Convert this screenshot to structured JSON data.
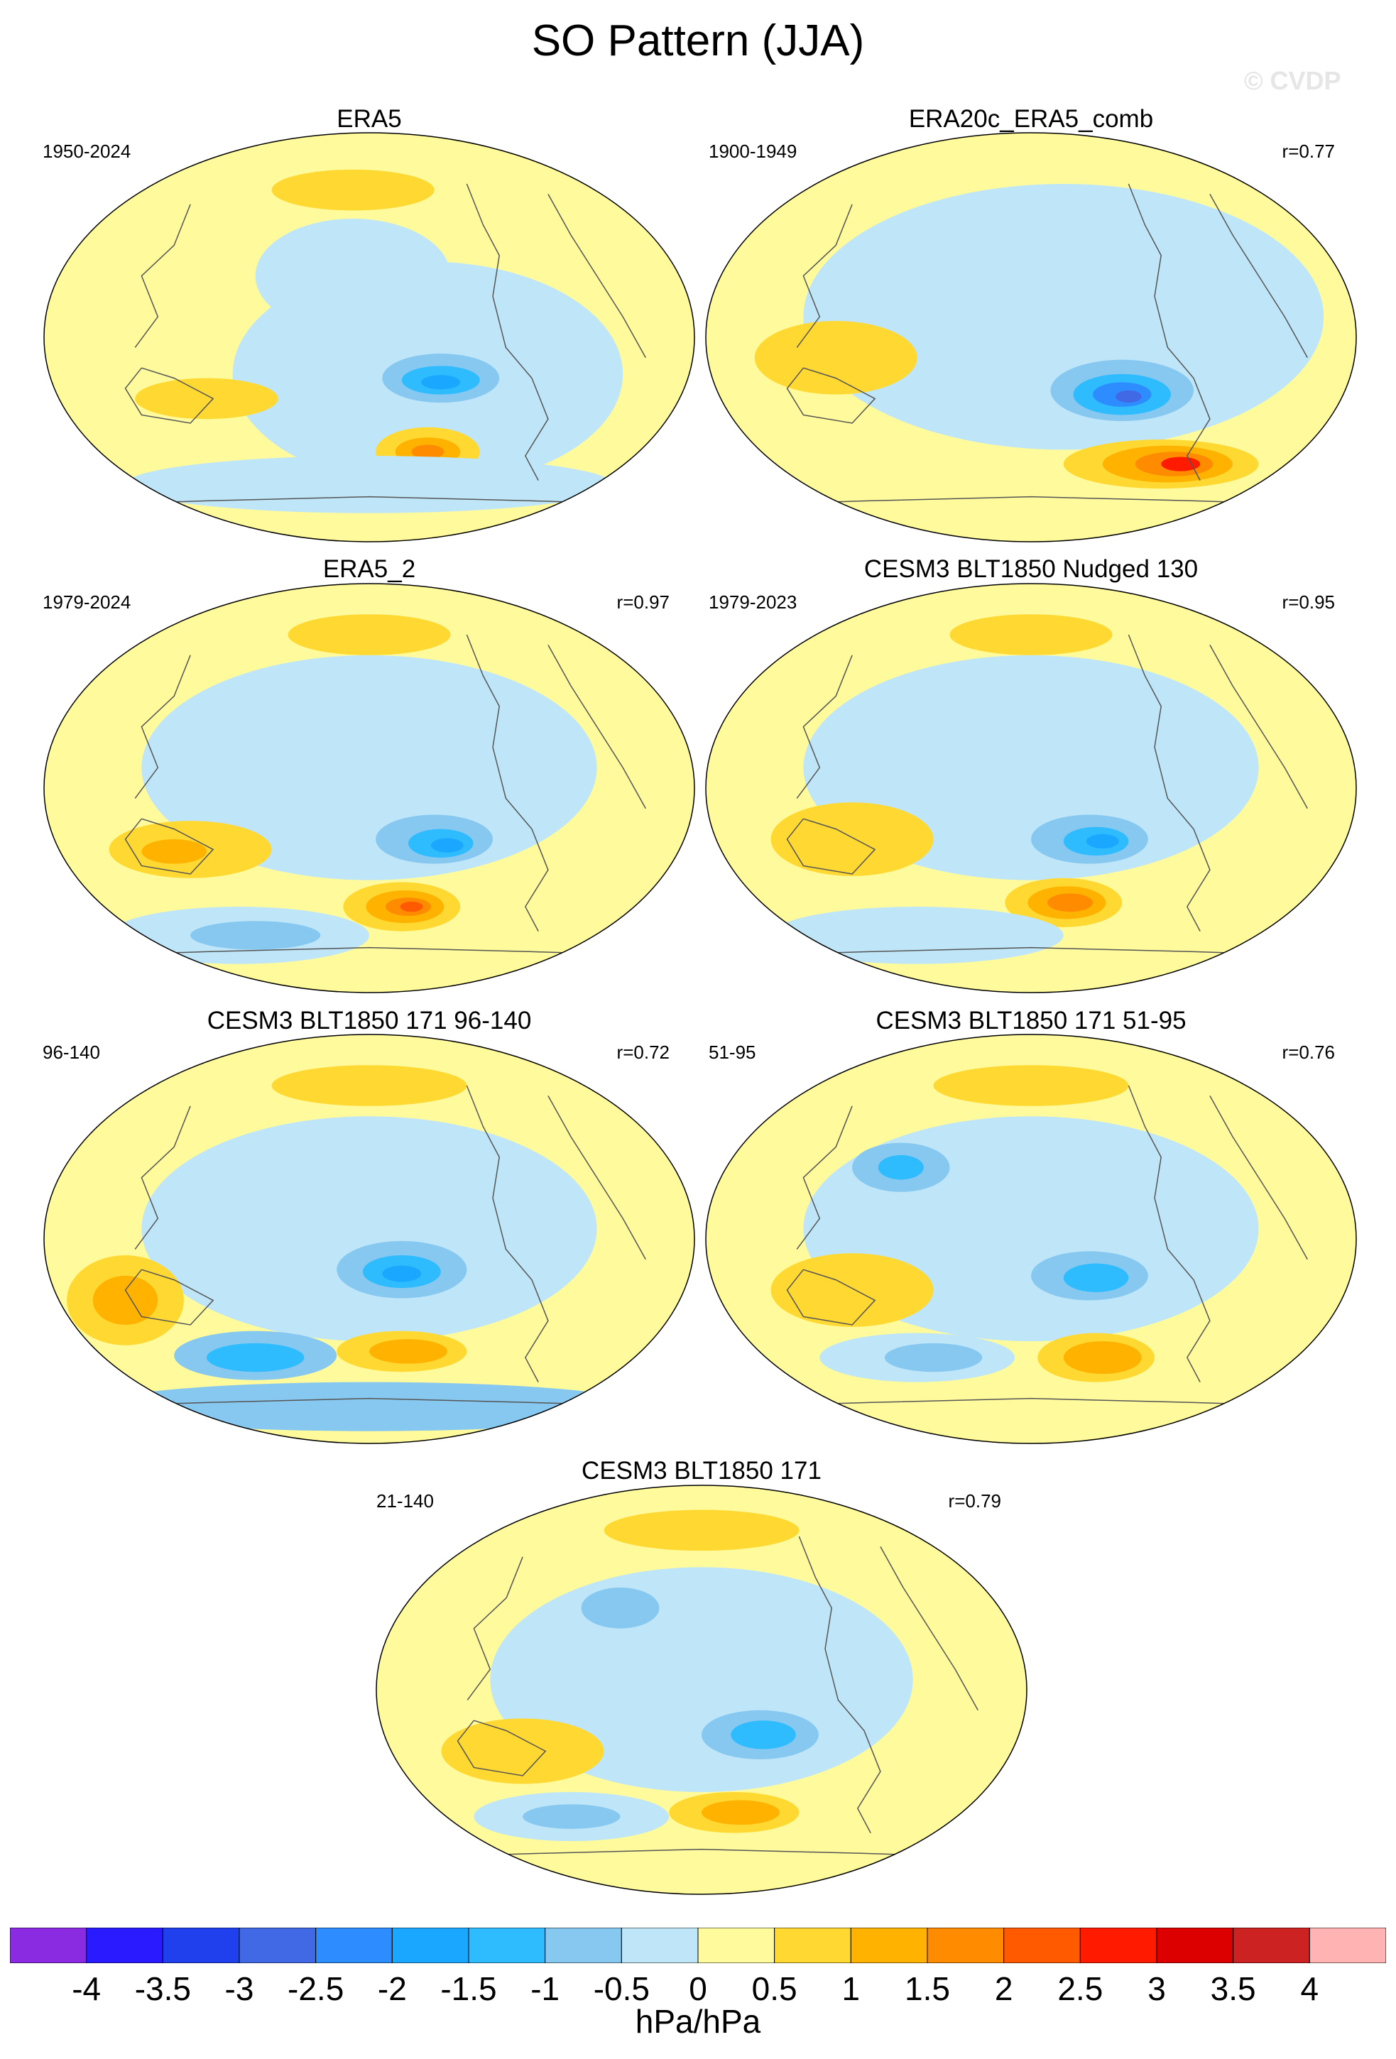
{
  "title": "SO Pattern (JJA)",
  "watermark": "© CVDP",
  "colors": {
    "map_base": "#fffa9c",
    "coastline": "#555555",
    "pos_1": "#ffd932",
    "pos_2": "#ffb300",
    "pos_3": "#ff8c00",
    "pos_4": "#ff5a00",
    "pos_5": "#ff1a00",
    "neg_1": "#bee6f8",
    "neg_2": "#87c8f0",
    "neg_3": "#2ebcff",
    "neg_4": "#1aa7ff",
    "neg_5": "#2d8cff",
    "neg_6": "#4169e6"
  },
  "panels": [
    {
      "title": "ERA5",
      "period": "1950-2024",
      "r": ""
    },
    {
      "title": "ERA20c_ERA5_comb",
      "period": "1900-1949",
      "r": "r=0.77"
    },
    {
      "title": "ERA5_2",
      "period": "1979-2024",
      "r": "r=0.97"
    },
    {
      "title": "CESM3 BLT1850 Nudged 130",
      "period": "1979-2023",
      "r": "r=0.95"
    },
    {
      "title": "CESM3 BLT1850 171 96-140",
      "period": "96-140",
      "r": "r=0.72"
    },
    {
      "title": "CESM3 BLT1850 171 51-95",
      "period": "51-95",
      "r": "r=0.76"
    },
    {
      "title": "CESM3 BLT1850 171",
      "period": "21-140",
      "r": "r=0.79"
    }
  ],
  "colorbar": {
    "units": "hPa/hPa",
    "tick_labels": [
      "-4",
      "-3.5",
      "-3",
      "-2.5",
      "-2",
      "-1.5",
      "-1",
      "-0.5",
      "0",
      "0.5",
      "1",
      "1.5",
      "2",
      "2.5",
      "3",
      "3.5",
      "4"
    ],
    "colors": [
      "#8a2be2",
      "#2a1aff",
      "#2040ee",
      "#4169e6",
      "#2d8cff",
      "#1aa7ff",
      "#2ebcff",
      "#87c8f0",
      "#bee6f8",
      "#fffa9c",
      "#ffd932",
      "#ffb300",
      "#ff8c00",
      "#ff5a00",
      "#ff1a00",
      "#dd0000",
      "#cc2222",
      "#ffb3b3"
    ]
  }
}
